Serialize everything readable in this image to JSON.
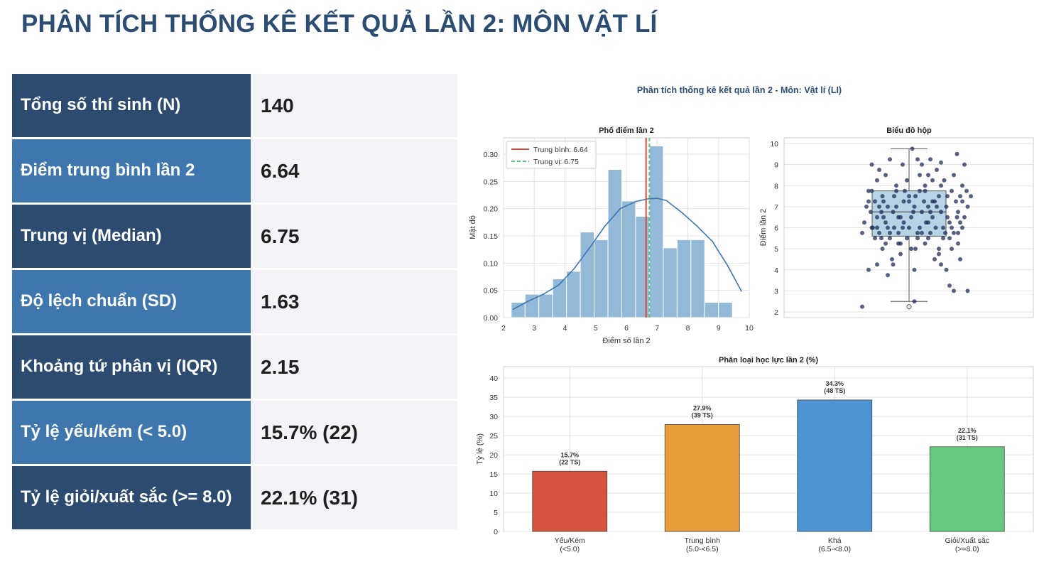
{
  "page": {
    "title": "PHÂN TÍCH THỐNG KÊ KẾT QUẢ LẦN 2: MÔN VẬT LÍ"
  },
  "stats": [
    {
      "label": "Tổng số thí sinh (N)",
      "value": "140"
    },
    {
      "label": "Điểm trung bình lần 2",
      "value": "6.64"
    },
    {
      "label": "Trung vị (Median)",
      "value": "6.75"
    },
    {
      "label": "Độ lệch chuẩn (SD)",
      "value": "1.63"
    },
    {
      "label": "Khoảng tứ phân vị (IQR)",
      "value": "2.15"
    },
    {
      "label": "Tỷ lệ yếu/kém (< 5.0)",
      "value": "15.7% (22)"
    },
    {
      "label": "Tỷ lệ giỏi/xuất sắc (>= 8.0)",
      "value": "22.1% (31)"
    }
  ],
  "figure": {
    "suptitle": "Phân tích thống kê kết quả lần 2 - Môn: Vật lí (LI)"
  },
  "colors": {
    "hist_bar": "#93b9d9",
    "kde_line": "#3a77b3",
    "mean_line": "#d9483b",
    "median_line": "#5cc47a",
    "box_fill": "#a9cde0",
    "scatter_point": "#1f2d5a",
    "cat_yeu": "#d6543f",
    "cat_tb": "#e79d3b",
    "cat_kha": "#4d94d3",
    "cat_gioi": "#66c97d"
  },
  "chart_data": [
    {
      "type": "bar",
      "subtype": "histogram",
      "title": "Phổ điểm lần 2",
      "xlabel": "Điểm số lần 2",
      "ylabel": "Mật độ",
      "xlim": [
        2,
        10
      ],
      "ylim": [
        0,
        0.33
      ],
      "xticks": [
        "2",
        "3",
        "4",
        "5",
        "6",
        "7",
        "8",
        "9",
        "10"
      ],
      "yticks": [
        "0.00",
        "0.05",
        "0.10",
        "0.15",
        "0.20",
        "0.25",
        "0.30"
      ],
      "grid": true,
      "legend_position": "top-left",
      "bin_edges": [
        2.25,
        2.7,
        3.15,
        3.6,
        4.05,
        4.5,
        4.95,
        5.4,
        5.85,
        6.3,
        6.75,
        7.2,
        7.65,
        8.1,
        8.55,
        9.0,
        9.45,
        9.9
      ],
      "values": [
        0.028,
        0.043,
        0.043,
        0.071,
        0.085,
        0.157,
        0.143,
        0.272,
        0.214,
        0.186,
        0.315,
        0.128,
        0.143,
        0.143,
        0.028,
        0.028,
        0.0
      ],
      "kde": {
        "x": [
          2.3,
          2.8,
          3.3,
          3.8,
          4.3,
          4.8,
          5.3,
          5.8,
          6.3,
          6.7,
          7.0,
          7.3,
          7.8,
          8.3,
          8.8,
          9.3,
          9.75
        ],
        "y": [
          0.015,
          0.03,
          0.043,
          0.06,
          0.09,
          0.128,
          0.168,
          0.2,
          0.213,
          0.218,
          0.219,
          0.215,
          0.193,
          0.168,
          0.14,
          0.095,
          0.048
        ]
      },
      "series": [
        {
          "name": "Trung bình: 6.64",
          "x": 6.64
        },
        {
          "name": "Trung vị: 6.75",
          "x": 6.75
        }
      ]
    },
    {
      "type": "scatter",
      "subtype": "boxplot",
      "title": "Biểu đồ hộp",
      "ylabel": "Điểm lần 2",
      "ylim": [
        2,
        10
      ],
      "yticks": [
        "2",
        "3",
        "4",
        "5",
        "6",
        "7",
        "8",
        "9",
        "10"
      ],
      "grid": true,
      "box": {
        "min": 2.5,
        "q1": 5.6,
        "median": 6.75,
        "q3": 7.75,
        "max": 9.75,
        "outliers": [
          2.25
        ]
      },
      "points": [
        [
          -0.35,
          9.0
        ],
        [
          0.03,
          9.75
        ],
        [
          -0.18,
          9.25
        ],
        [
          0.08,
          9.25
        ],
        [
          0.2,
          9.25
        ],
        [
          0.3,
          9.1
        ],
        [
          0.45,
          9.5
        ],
        [
          0.52,
          9.0
        ],
        [
          -0.28,
          8.75
        ],
        [
          -0.22,
          8.5
        ],
        [
          -0.3,
          8.25
        ],
        [
          0.1,
          8.5
        ],
        [
          0.18,
          8.5
        ],
        [
          0.33,
          8.25
        ],
        [
          0.42,
          8.5
        ],
        [
          0.5,
          8.0
        ],
        [
          -0.38,
          7.75
        ],
        [
          -0.25,
          7.5
        ],
        [
          -0.12,
          7.75
        ],
        [
          0.0,
          7.5
        ],
        [
          0.15,
          7.75
        ],
        [
          0.28,
          7.5
        ],
        [
          0.48,
          7.5
        ],
        [
          0.58,
          7.5
        ],
        [
          -0.32,
          7.25
        ],
        [
          -0.2,
          7.0
        ],
        [
          -0.05,
          7.25
        ],
        [
          0.05,
          7.0
        ],
        [
          0.22,
          7.25
        ],
        [
          0.35,
          7.0
        ],
        [
          0.55,
          7.0
        ],
        [
          -0.15,
          6.75
        ],
        [
          0.12,
          6.75
        ],
        [
          0.3,
          6.75
        ],
        [
          0.45,
          6.5
        ],
        [
          -0.3,
          6.5
        ],
        [
          -0.08,
          6.5
        ],
        [
          0.18,
          6.25
        ],
        [
          0.38,
          6.25
        ],
        [
          -0.35,
          6.0
        ],
        [
          -0.22,
          6.25
        ],
        [
          0.0,
          6.0
        ],
        [
          0.25,
          6.0
        ],
        [
          0.5,
          6.0
        ],
        [
          -0.28,
          5.75
        ],
        [
          -0.1,
          5.75
        ],
        [
          0.08,
          5.75
        ],
        [
          0.32,
          5.5
        ],
        [
          0.46,
          5.75
        ],
        [
          -0.18,
          5.5
        ],
        [
          0.15,
          5.25
        ],
        [
          0.4,
          5.0
        ],
        [
          -0.25,
          5.0
        ],
        [
          0.02,
          5.0
        ],
        [
          0.28,
          4.75
        ],
        [
          -0.08,
          4.75
        ],
        [
          -0.38,
          4.0
        ],
        [
          -0.3,
          4.25
        ],
        [
          -0.15,
          4.25
        ],
        [
          0.05,
          4.0
        ],
        [
          0.35,
          4.0
        ],
        [
          0.48,
          4.5
        ],
        [
          -0.2,
          3.75
        ],
        [
          0.38,
          3.25
        ],
        [
          0.42,
          3.0
        ],
        [
          0.55,
          3.0
        ],
        [
          0.05,
          2.5
        ],
        [
          -0.44,
          2.25
        ],
        [
          -0.12,
          7.0
        ],
        [
          0.22,
          6.5
        ],
        [
          -0.4,
          7.0
        ],
        [
          0.1,
          6.0
        ],
        [
          -0.05,
          6.25
        ],
        [
          0.4,
          7.75
        ],
        [
          -0.35,
          7.75
        ],
        [
          0.15,
          8.0
        ],
        [
          -0.02,
          8.25
        ],
        [
          0.26,
          8.75
        ],
        [
          -0.14,
          6.0
        ],
        [
          0.34,
          5.75
        ],
        [
          -0.26,
          6.75
        ],
        [
          0.06,
          7.5
        ],
        [
          0.2,
          5.75
        ],
        [
          -0.1,
          5.25
        ],
        [
          0.52,
          6.5
        ],
        [
          -0.42,
          6.25
        ],
        [
          0.44,
          7.25
        ],
        [
          -0.06,
          9.0
        ],
        [
          0.12,
          9.0
        ],
        [
          0.3,
          8.0
        ],
        [
          -0.24,
          7.25
        ],
        [
          0.02,
          6.5
        ],
        [
          0.18,
          7.0
        ],
        [
          -0.32,
          5.5
        ],
        [
          0.46,
          5.25
        ],
        [
          -0.16,
          4.5
        ],
        [
          0.24,
          4.5
        ],
        [
          0.4,
          6.0
        ],
        [
          -0.2,
          6.0
        ],
        [
          0.08,
          5.5
        ],
        [
          0.5,
          7.25
        ],
        [
          -0.36,
          6.75
        ],
        [
          0.14,
          7.25
        ],
        [
          -0.08,
          5.25
        ],
        [
          0.28,
          5.0
        ],
        [
          0.36,
          6.5
        ],
        [
          -0.12,
          8.0
        ],
        [
          0.22,
          8.25
        ],
        [
          -0.28,
          7.0
        ],
        [
          0.04,
          6.75
        ],
        [
          0.46,
          6.75
        ],
        [
          -0.02,
          5.5
        ],
        [
          0.3,
          4.25
        ],
        [
          -0.44,
          5.75
        ],
        [
          0.16,
          6.25
        ],
        [
          -0.22,
          5.25
        ],
        [
          0.54,
          7.75
        ],
        [
          0.1,
          7.75
        ],
        [
          -0.34,
          6.0
        ],
        [
          0.26,
          7.0
        ],
        [
          -0.1,
          6.5
        ],
        [
          0.38,
          5.5
        ],
        [
          0.0,
          7.25
        ],
        [
          -0.18,
          5.75
        ],
        [
          0.2,
          6.75
        ],
        [
          0.48,
          6.25
        ],
        [
          -0.3,
          6.0
        ],
        [
          0.06,
          5.0
        ],
        [
          0.32,
          6.0
        ],
        [
          -0.24,
          6.5
        ],
        [
          0.12,
          5.75
        ],
        [
          -0.04,
          7.75
        ],
        [
          0.42,
          5.75
        ],
        [
          -0.14,
          7.5
        ],
        [
          0.24,
          7.25
        ],
        [
          -0.38,
          7.25
        ],
        [
          0.18,
          5.5
        ],
        [
          -0.06,
          6.0
        ],
        [
          0.36,
          7.5
        ],
        [
          -0.26,
          5.5
        ]
      ]
    },
    {
      "type": "bar",
      "title": "Phân loại học lực lần 2 (%)",
      "ylabel": "Tỷ lệ (%)",
      "ylim": [
        0,
        43
      ],
      "yticks": [
        "0",
        "5",
        "10",
        "15",
        "20",
        "25",
        "30",
        "35",
        "40"
      ],
      "grid": true,
      "categories": [
        {
          "line1": "Yếu/Kém",
          "line2": "(<5.0)"
        },
        {
          "line1": "Trung bình",
          "line2": "(5.0-<6.5)"
        },
        {
          "line1": "Khá",
          "line2": "(6.5-<8.0)"
        },
        {
          "line1": "Giỏi/Xuất sắc",
          "line2": "(>=8.0)"
        }
      ],
      "values": [
        15.7,
        27.9,
        34.3,
        22.1
      ],
      "labels": [
        {
          "pct": "15.7%",
          "count": "(22 TS)"
        },
        {
          "pct": "27.9%",
          "count": "(39 TS)"
        },
        {
          "pct": "34.3%",
          "count": "(48 TS)"
        },
        {
          "pct": "22.1%",
          "count": "(31 TS)"
        }
      ]
    }
  ]
}
